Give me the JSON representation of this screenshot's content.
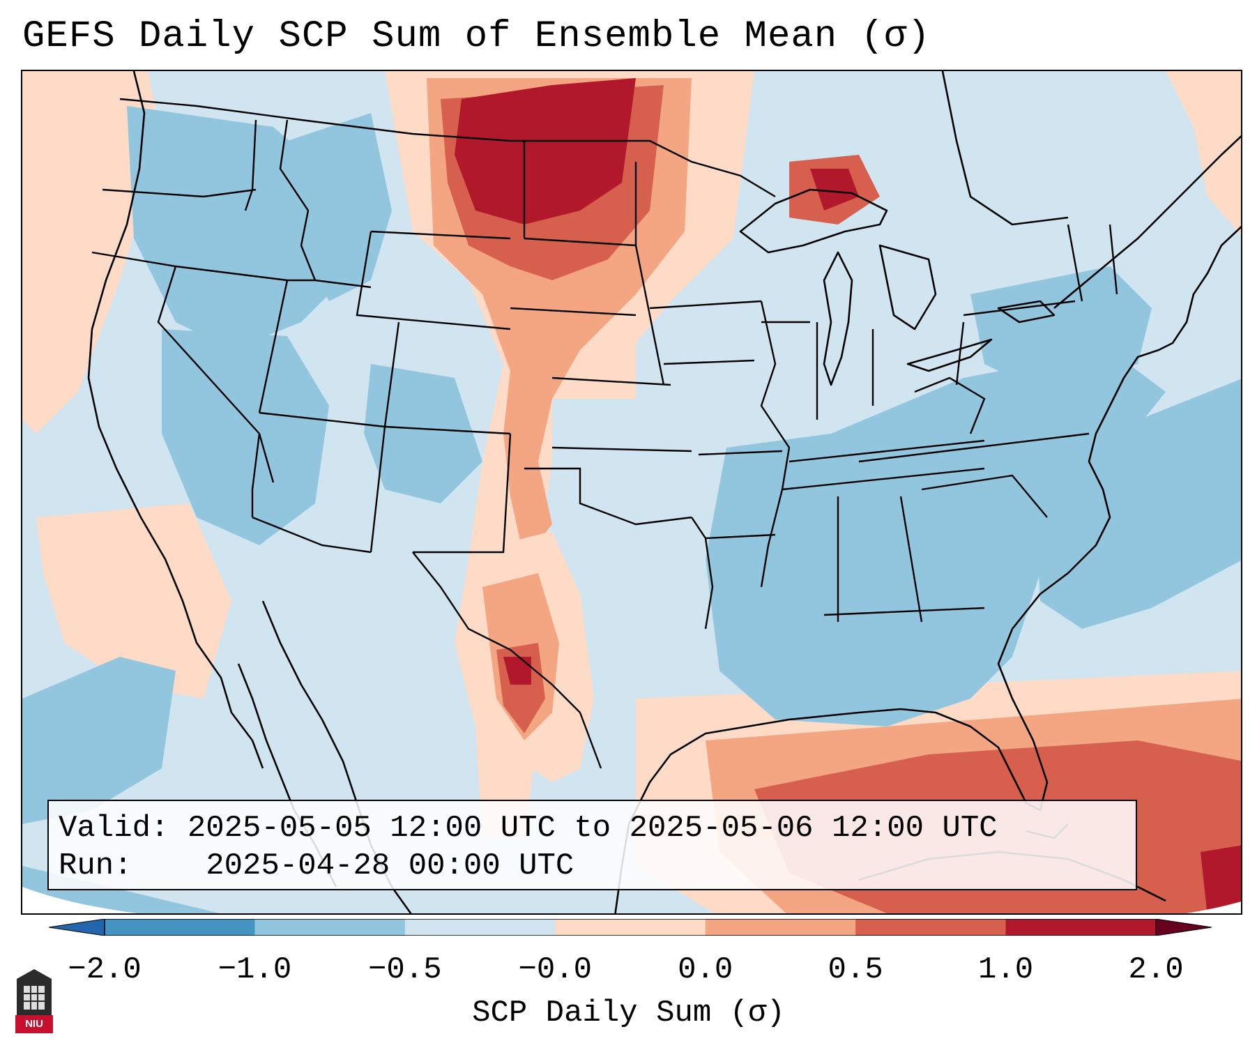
{
  "title": "GEFS Daily SCP Sum of Ensemble Mean (σ)",
  "info": {
    "valid_label": "Valid:",
    "valid_value": "2025-05-05 12:00 UTC to 2025-05-06 12:00 UTC",
    "run_label": "Run:",
    "run_value": "2025-04-28 00:00 UTC"
  },
  "colorbar": {
    "label": "SCP Daily Sum (σ)",
    "ticks": [
      "−2.0",
      "−1.0",
      "−0.5",
      "−0.0",
      "0.0",
      "0.5",
      "1.0",
      "2.0"
    ],
    "colors": [
      "#4393c3",
      "#92c5de",
      "#d1e5f0",
      "#fddbc7",
      "#f4a582",
      "#d6604d",
      "#b2182b"
    ],
    "extend": "both",
    "under_color": "#2166ac",
    "over_color": "#67001f"
  },
  "map": {
    "projection": "Lambert conformal over CONUS",
    "background_color": "#d1e5f0",
    "regions": [
      {
        "name": "Northern Plains maximum (Montana / North Dakota)",
        "category": "1.0 to 2.0"
      },
      {
        "name": "Southern High Plains / West Texas corridor",
        "category": "0.5 to 2.0"
      },
      {
        "name": "Gulf of Mexico / Caribbean",
        "category": "0.5 to 2.0"
      },
      {
        "name": "Western U.S. intermountain",
        "category": "-1.0 to -0.5"
      },
      {
        "name": "Southeast U.S. / Tennessee Valley",
        "category": "-1.0 to -0.5"
      },
      {
        "name": "Western Atlantic offshore",
        "category": "-1.0 to -0.5"
      }
    ]
  },
  "logo": {
    "text": "NIU"
  }
}
